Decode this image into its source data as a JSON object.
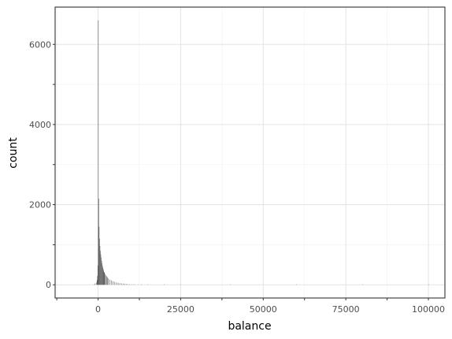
{
  "chart_data": {
    "type": "bar",
    "subtype": "histogram",
    "xlabel": "balance",
    "ylabel": "count",
    "xlim": [
      -13000,
      105000
    ],
    "ylim": [
      -330,
      6930
    ],
    "x_ticks": [
      0,
      25000,
      50000,
      75000,
      100000
    ],
    "x_tick_labels": [
      "0",
      "25000",
      "50000",
      "75000",
      "100000"
    ],
    "y_ticks": [
      0,
      2000,
      4000,
      6000
    ],
    "y_tick_labels": [
      "0",
      "2000",
      "4000",
      "6000"
    ],
    "grid": true,
    "theme": "bw",
    "bar_color": "#595959",
    "bin_width": 125,
    "bins": [
      [
        -1500,
        10
      ],
      [
        -1000,
        30
      ],
      [
        -625,
        60
      ],
      [
        -375,
        120
      ],
      [
        -250,
        220
      ],
      [
        -125,
        480
      ],
      [
        0,
        6600
      ],
      [
        125,
        2150
      ],
      [
        250,
        1450
      ],
      [
        375,
        1150
      ],
      [
        500,
        970
      ],
      [
        625,
        850
      ],
      [
        750,
        760
      ],
      [
        875,
        680
      ],
      [
        1000,
        600
      ],
      [
        1125,
        540
      ],
      [
        1250,
        480
      ],
      [
        1375,
        430
      ],
      [
        1500,
        390
      ],
      [
        1625,
        350
      ],
      [
        1750,
        320
      ],
      [
        1875,
        300
      ],
      [
        2000,
        270
      ],
      [
        2250,
        240
      ],
      [
        2500,
        210
      ],
      [
        2750,
        190
      ],
      [
        3000,
        160
      ],
      [
        3500,
        130
      ],
      [
        4000,
        110
      ],
      [
        4500,
        90
      ],
      [
        5000,
        75
      ],
      [
        5500,
        60
      ],
      [
        6000,
        50
      ],
      [
        6500,
        42
      ],
      [
        7000,
        35
      ],
      [
        7500,
        30
      ],
      [
        8000,
        25
      ],
      [
        8500,
        20
      ],
      [
        9000,
        16
      ],
      [
        9500,
        12
      ],
      [
        10000,
        9
      ],
      [
        10500,
        7
      ],
      [
        11000,
        5
      ],
      [
        12000,
        3
      ],
      [
        13000,
        2
      ],
      [
        15000,
        1
      ],
      [
        20000,
        1
      ],
      [
        25000,
        1
      ],
      [
        40000,
        1
      ],
      [
        60000,
        1
      ],
      [
        80000,
        1
      ],
      [
        100000,
        1
      ]
    ]
  }
}
